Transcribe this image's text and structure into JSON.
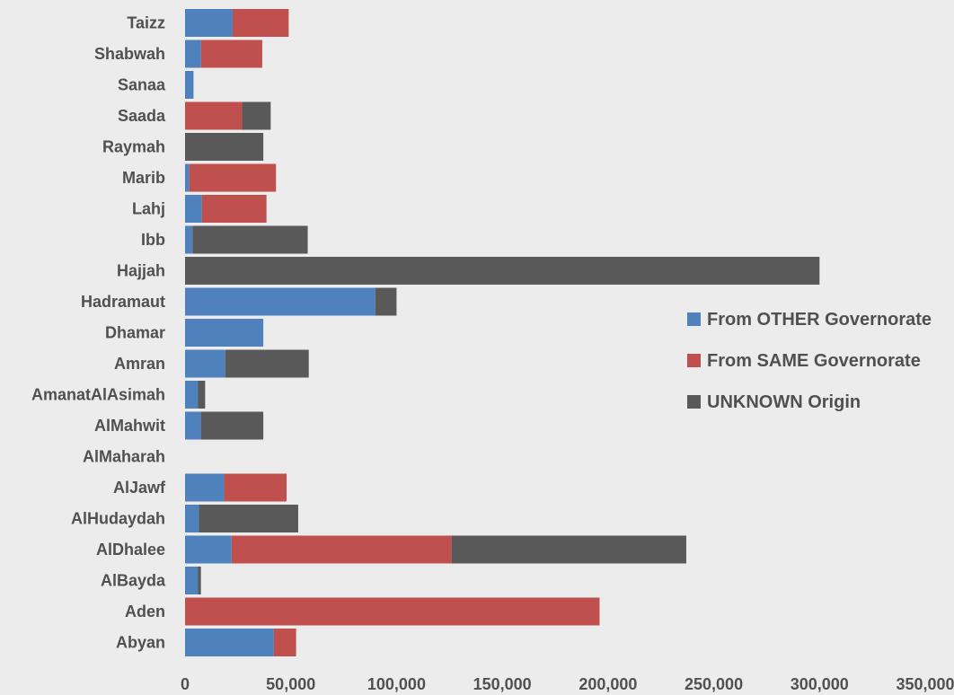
{
  "colors": {
    "other": "#4f81bd",
    "same": "#c0504d",
    "unknown": "#595959",
    "background": "#ececec"
  },
  "chart_data": {
    "type": "bar",
    "orientation": "horizontal",
    "stacked": true,
    "title": "",
    "xlabel": "",
    "ylabel": "",
    "xlim": [
      0,
      350000
    ],
    "x_ticks": [
      "0",
      "50,000",
      "100,000",
      "150,000",
      "200,000",
      "250,000",
      "300,000",
      "350,000"
    ],
    "x_tick_values": [
      0,
      50000,
      100000,
      150000,
      200000,
      250000,
      300000,
      350000
    ],
    "grid": false,
    "legend_position": "right",
    "categories": [
      "Taizz",
      "Shabwah",
      "Sanaa",
      "Saada",
      "Raymah",
      "Marib",
      "Lahj",
      "Ibb",
      "Hajjah",
      "Hadramaut",
      "Dhamar",
      "Amran",
      "AmanatAlAsimah",
      "AlMahwit",
      "AlMaharah",
      "AlJawf",
      "AlHudaydah",
      "AlDhalee",
      "AlBayda",
      "Aden",
      "Abyan"
    ],
    "series": [
      {
        "name": "From OTHER Governorate",
        "color_key": "other",
        "values": [
          22500,
          7500,
          4000,
          0,
          0,
          2000,
          8000,
          3500,
          0,
          90000,
          37000,
          19000,
          6000,
          7500,
          0,
          18500,
          6500,
          22000,
          6000,
          0,
          42000
        ]
      },
      {
        "name": "From SAME Governorate",
        "color_key": "same",
        "values": [
          26500,
          29000,
          0,
          27000,
          0,
          41000,
          30500,
          0,
          0,
          0,
          0,
          0,
          0,
          0,
          0,
          29500,
          0,
          104000,
          0,
          196000,
          10500
        ]
      },
      {
        "name": "UNKNOWN Origin",
        "color_key": "unknown",
        "values": [
          0,
          0,
          0,
          13500,
          37000,
          0,
          0,
          54500,
          300000,
          10000,
          0,
          39500,
          3500,
          29500,
          0,
          0,
          47000,
          111000,
          1500,
          0,
          0
        ]
      }
    ]
  }
}
